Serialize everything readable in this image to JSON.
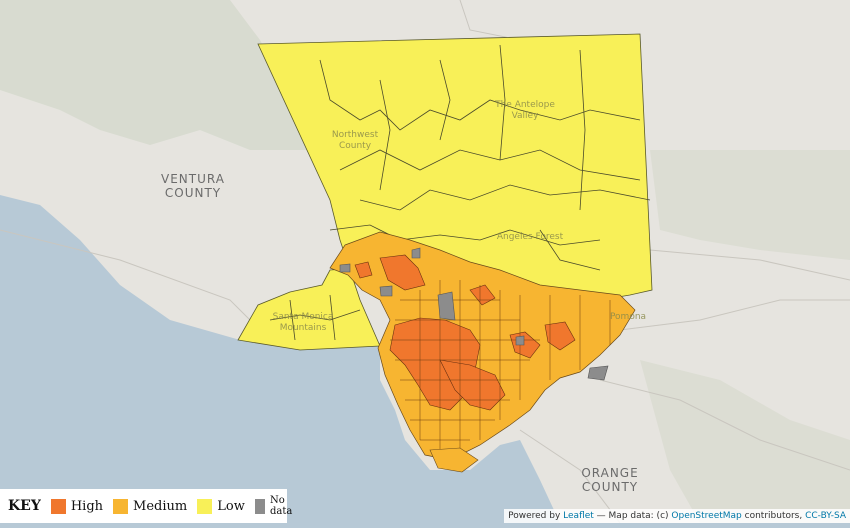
{
  "map": {
    "labels": {
      "ventura": [
        "VENTURA",
        "COUNTY"
      ],
      "orange": [
        "ORANGE",
        "COUNTY"
      ],
      "northwest": [
        "Northwest",
        "County"
      ],
      "antelope": [
        "The Antelope",
        "Valley"
      ],
      "forest": "Angeles Forest",
      "santa_monica": [
        "Santa Monica",
        "Mountains"
      ],
      "pomona": "Pomona"
    },
    "colors": {
      "high": "#f0772d",
      "medium": "#f7b531",
      "low": "#f8f058",
      "no_data": "#8c8c8c",
      "water": "#b7c9d6",
      "land": "#e6e4df"
    }
  },
  "legend": {
    "title": "KEY",
    "items": [
      {
        "label": "High",
        "color": "#f0772d"
      },
      {
        "label": "Medium",
        "color": "#f7b531"
      },
      {
        "label": "Low",
        "color": "#f8f058"
      },
      {
        "label": "No data",
        "color": "#8c8c8c"
      }
    ]
  },
  "attribution": {
    "powered": "Powered by",
    "leaflet": "Leaflet",
    "mid": " — Map data: (c) ",
    "osm": "OpenStreetMap",
    "contrib": " contributors, ",
    "license": "CC-BY-SA"
  }
}
